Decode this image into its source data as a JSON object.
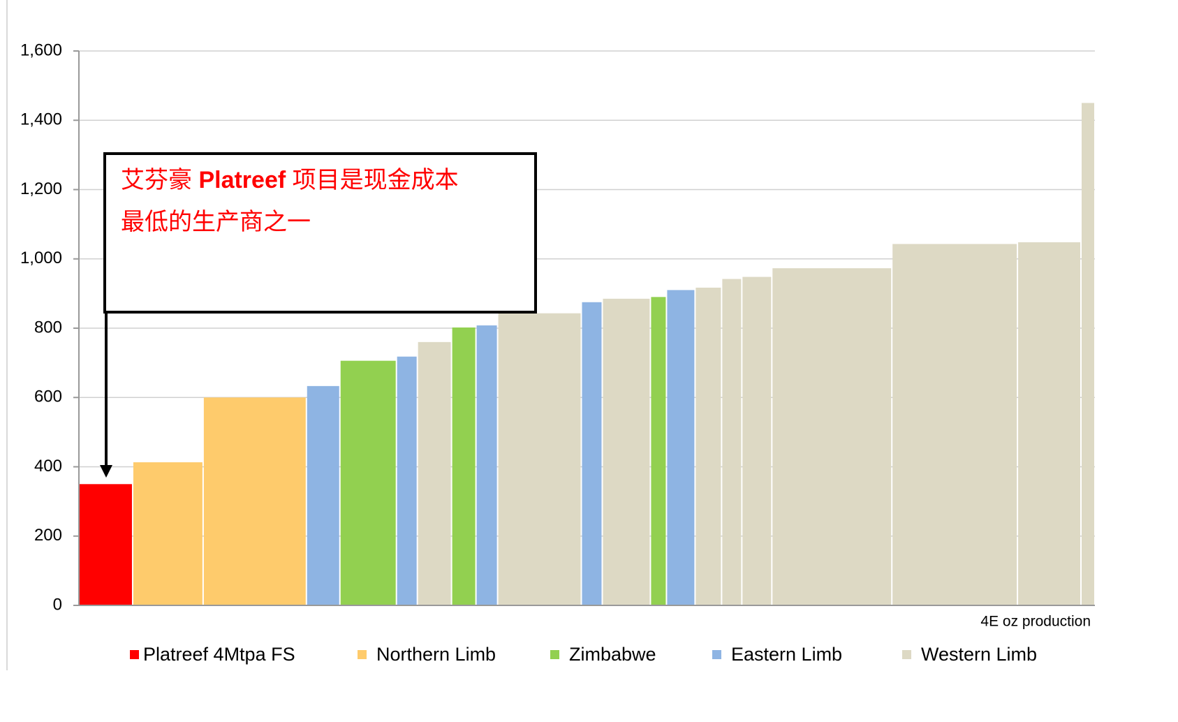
{
  "chart_data": {
    "type": "cost_curve",
    "x_label": "4E oz production",
    "series": [
      {
        "name": "Platreef 4Mtpa FS",
        "color": "#ff0000"
      },
      {
        "name": "Northern Limb",
        "color": "#fecb6c"
      },
      {
        "name": "Zimbabwe",
        "color": "#92d050"
      },
      {
        "name": "Eastern Limb",
        "color": "#8eb4e3"
      },
      {
        "name": "Western Limb",
        "color": "#ddd9c4"
      }
    ],
    "bars": [
      {
        "group": 0,
        "width": 77,
        "value": 350
      },
      {
        "group": 1,
        "width": 101,
        "value": 413
      },
      {
        "group": 1,
        "width": 148,
        "value": 600
      },
      {
        "group": 3,
        "width": 48,
        "value": 633
      },
      {
        "group": 2,
        "width": 81,
        "value": 706
      },
      {
        "group": 3,
        "width": 30,
        "value": 718
      },
      {
        "group": 4,
        "width": 49,
        "value": 760
      },
      {
        "group": 2,
        "width": 35,
        "value": 802
      },
      {
        "group": 3,
        "width": 31,
        "value": 808
      },
      {
        "group": 4,
        "width": 120,
        "value": 843
      },
      {
        "group": 3,
        "width": 30,
        "value": 875
      },
      {
        "group": 4,
        "width": 69,
        "value": 885
      },
      {
        "group": 2,
        "width": 23,
        "value": 890
      },
      {
        "group": 3,
        "width": 41,
        "value": 910
      },
      {
        "group": 4,
        "width": 38,
        "value": 917
      },
      {
        "group": 4,
        "width": 29,
        "value": 942
      },
      {
        "group": 4,
        "width": 43,
        "value": 948
      },
      {
        "group": 4,
        "width": 172,
        "value": 973
      },
      {
        "group": 4,
        "width": 180,
        "value": 1043
      },
      {
        "group": 4,
        "width": 91,
        "value": 1048
      },
      {
        "group": 4,
        "width": 20,
        "value": 1450
      }
    ],
    "xlim": [
      0,
      1456
    ],
    "ylim": [
      0,
      1600
    ],
    "yticks": [
      0,
      200,
      400,
      600,
      800,
      {
        "value": 1000,
        "label": "1,000"
      },
      {
        "value": 1200,
        "label": "1,200"
      },
      {
        "value": 1400,
        "label": "1,400"
      },
      {
        "value": 1600,
        "label": "1,600"
      }
    ],
    "grid": true,
    "annotation": {
      "line1": [
        "艾芬豪 ",
        "Platreef",
        " 项目是现金成本"
      ],
      "line2": "最低的生产商之一"
    }
  }
}
